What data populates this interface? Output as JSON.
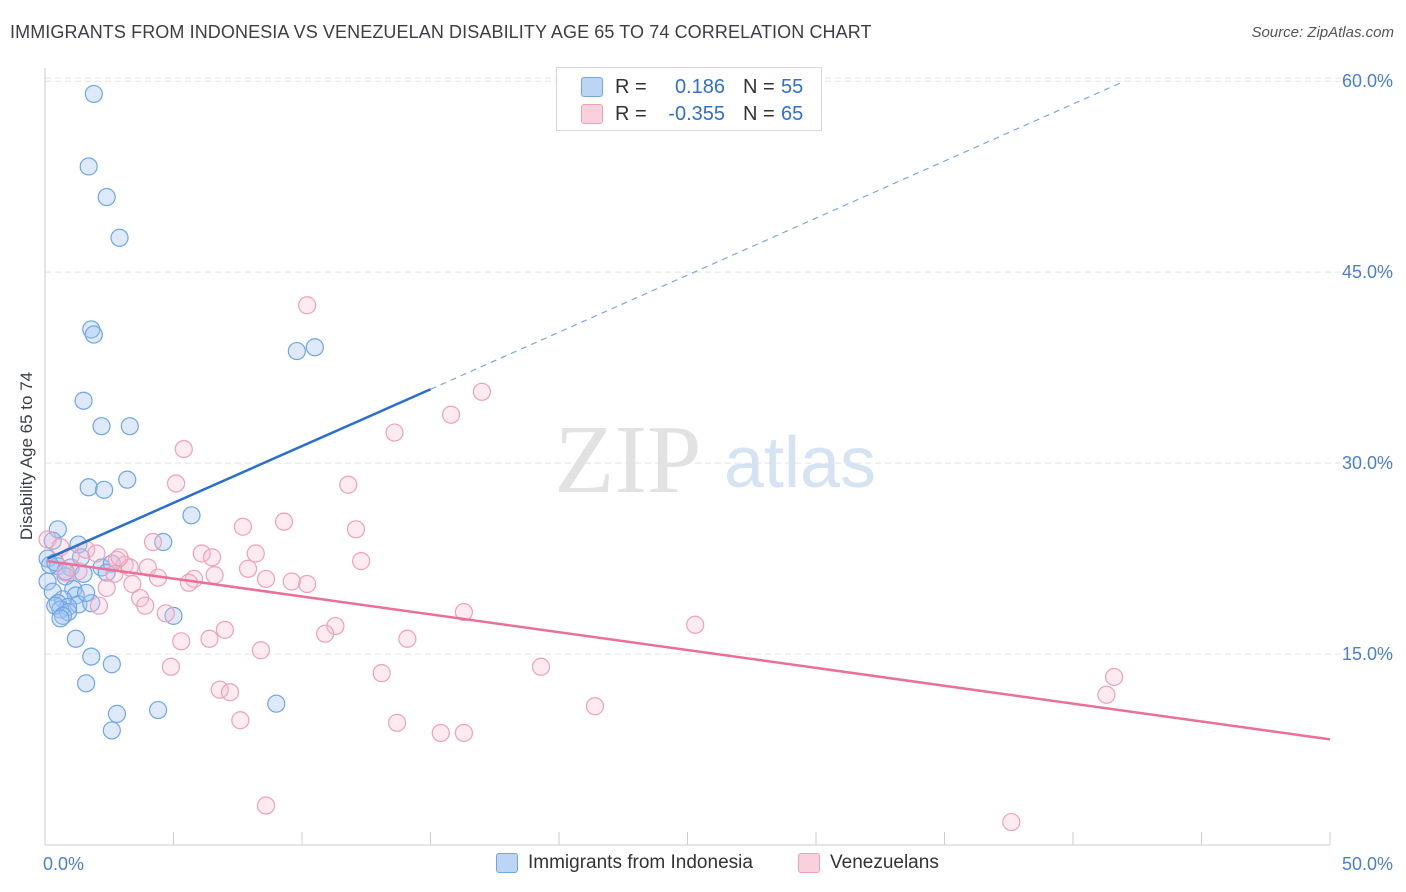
{
  "title": "IMMIGRANTS FROM INDONESIA VS VENEZUELAN DISABILITY AGE 65 TO 74 CORRELATION CHART",
  "source": "Source: ZipAtlas.com",
  "watermark": {
    "zip": "ZIP",
    "atlas": "atlas"
  },
  "legend": {
    "rows": [
      {
        "r_label": "R =",
        "r_value": "0.186",
        "n_label": "N =",
        "n_value": "55",
        "color": "#6ea6e8"
      },
      {
        "r_label": "R =",
        "r_value": "-0.355",
        "n_label": "N =",
        "n_value": "65",
        "color": "#f0a0b8"
      }
    ]
  },
  "bottom_legend": [
    {
      "label": "Immigrants from Indonesia",
      "color": "#6ea6e8"
    },
    {
      "label": "Venezuelans",
      "color": "#f0a0b8"
    }
  ],
  "chart_data": {
    "type": "scatter",
    "ylabel": "Disability Age 65 to 74",
    "xlim": [
      0,
      50
    ],
    "ylim": [
      0,
      62
    ],
    "x_tick_labels": [
      "0.0%",
      "50.0%"
    ],
    "y_ticks": [
      15,
      30,
      45,
      60
    ],
    "y_tick_labels": [
      "15.0%",
      "30.0%",
      "45.0%",
      "60.0%"
    ],
    "grid": true,
    "series": [
      {
        "name": "Immigrants from Indonesia",
        "color": "#6ea6e8",
        "line_color": "#2b6fcf",
        "trend": {
          "x0": 0.1,
          "y0": 22.5,
          "x1": 15,
          "y1": 35.8,
          "dash_x1": 42,
          "dash_y1": 60
        },
        "points": [
          [
            1.9,
            59.0
          ],
          [
            1.7,
            53.3
          ],
          [
            2.4,
            50.9
          ],
          [
            2.9,
            47.7
          ],
          [
            1.8,
            40.5
          ],
          [
            1.9,
            40.1
          ],
          [
            9.8,
            38.8
          ],
          [
            10.5,
            39.1
          ],
          [
            1.5,
            34.9
          ],
          [
            2.2,
            32.9
          ],
          [
            3.3,
            32.9
          ],
          [
            3.2,
            28.7
          ],
          [
            1.7,
            28.1
          ],
          [
            2.3,
            27.9
          ],
          [
            5.7,
            25.9
          ],
          [
            0.1,
            22.5
          ],
          [
            0.5,
            24.8
          ],
          [
            0.3,
            23.9
          ],
          [
            2.2,
            21.8
          ],
          [
            4.6,
            23.8
          ],
          [
            1.3,
            23.6
          ],
          [
            2.6,
            22.1
          ],
          [
            0.1,
            20.7
          ],
          [
            0.5,
            21.9
          ],
          [
            1.0,
            21.8
          ],
          [
            0.8,
            21.1
          ],
          [
            1.5,
            21.3
          ],
          [
            2.4,
            21.4
          ],
          [
            0.3,
            19.9
          ],
          [
            1.1,
            20.1
          ],
          [
            1.2,
            19.6
          ],
          [
            0.7,
            19.3
          ],
          [
            0.5,
            19.0
          ],
          [
            1.3,
            18.9
          ],
          [
            1.8,
            19.0
          ],
          [
            0.9,
            18.7
          ],
          [
            0.6,
            18.5
          ],
          [
            0.4,
            18.8
          ],
          [
            0.9,
            18.3
          ],
          [
            0.7,
            18.0
          ],
          [
            0.6,
            17.8
          ],
          [
            5.0,
            18.0
          ],
          [
            1.2,
            16.2
          ],
          [
            1.8,
            14.8
          ],
          [
            2.6,
            14.2
          ],
          [
            1.6,
            12.7
          ],
          [
            2.8,
            10.3
          ],
          [
            4.4,
            10.6
          ],
          [
            9.0,
            11.1
          ],
          [
            2.6,
            9.0
          ],
          [
            0.2,
            22.0
          ],
          [
            1.4,
            22.6
          ],
          [
            0.4,
            22.2
          ],
          [
            0.8,
            21.5
          ],
          [
            1.6,
            19.8
          ]
        ]
      },
      {
        "name": "Venezuelans",
        "color": "#f0a0b8",
        "line_color": "#e8709a",
        "trend": {
          "x0": 0.1,
          "y0": 22.3,
          "x1": 50,
          "y1": 8.3
        },
        "points": [
          [
            0.1,
            24.0
          ],
          [
            10.2,
            42.4
          ],
          [
            17.0,
            35.6
          ],
          [
            15.8,
            33.8
          ],
          [
            13.6,
            32.4
          ],
          [
            5.4,
            31.1
          ],
          [
            5.1,
            28.4
          ],
          [
            11.8,
            28.3
          ],
          [
            9.3,
            25.4
          ],
          [
            7.7,
            25.0
          ],
          [
            12.1,
            24.8
          ],
          [
            4.2,
            23.8
          ],
          [
            0.6,
            23.4
          ],
          [
            1.6,
            23.2
          ],
          [
            2.0,
            22.9
          ],
          [
            6.1,
            22.9
          ],
          [
            6.5,
            22.6
          ],
          [
            8.2,
            22.9
          ],
          [
            12.3,
            22.3
          ],
          [
            2.8,
            22.4
          ],
          [
            3.1,
            22.0
          ],
          [
            4.0,
            21.8
          ],
          [
            3.3,
            21.8
          ],
          [
            1.3,
            21.5
          ],
          [
            7.9,
            21.7
          ],
          [
            0.8,
            21.4
          ],
          [
            2.7,
            21.3
          ],
          [
            5.8,
            20.9
          ],
          [
            4.4,
            21.0
          ],
          [
            8.6,
            20.9
          ],
          [
            10.2,
            20.5
          ],
          [
            5.6,
            20.6
          ],
          [
            3.4,
            20.5
          ],
          [
            2.4,
            20.2
          ],
          [
            3.7,
            19.4
          ],
          [
            3.9,
            18.8
          ],
          [
            2.1,
            18.8
          ],
          [
            16.3,
            18.3
          ],
          [
            4.7,
            18.2
          ],
          [
            11.3,
            17.2
          ],
          [
            7.0,
            16.9
          ],
          [
            10.9,
            16.6
          ],
          [
            6.4,
            16.2
          ],
          [
            14.1,
            16.2
          ],
          [
            5.3,
            16.0
          ],
          [
            25.3,
            17.3
          ],
          [
            8.4,
            15.3
          ],
          [
            4.9,
            14.0
          ],
          [
            19.3,
            14.0
          ],
          [
            13.1,
            13.5
          ],
          [
            41.6,
            13.2
          ],
          [
            6.8,
            12.2
          ],
          [
            7.2,
            12.0
          ],
          [
            41.3,
            11.8
          ],
          [
            21.4,
            10.9
          ],
          [
            7.6,
            9.8
          ],
          [
            13.7,
            9.6
          ],
          [
            15.4,
            8.8
          ],
          [
            16.3,
            8.8
          ],
          [
            8.6,
            3.1
          ],
          [
            37.6,
            1.8
          ],
          [
            2.9,
            22.6
          ],
          [
            6.6,
            21.2
          ],
          [
            1.0,
            22.7
          ],
          [
            9.6,
            20.7
          ]
        ]
      }
    ]
  }
}
